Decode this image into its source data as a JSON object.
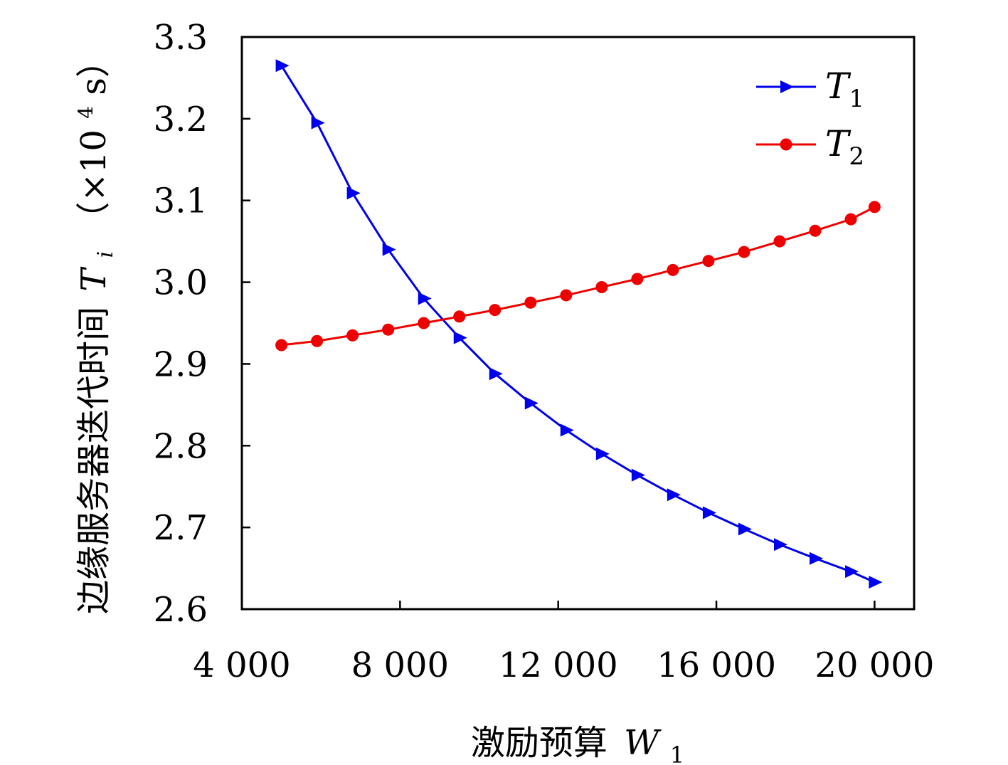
{
  "chart_data": {
    "type": "line",
    "xlabel": "激励预算 W1",
    "ylabel": "边缘服务器迭代时间 Ti（×10⁴ s）",
    "xlim": [
      4000,
      21000
    ],
    "ylim": [
      2.6,
      3.3
    ],
    "xticks": [
      4000,
      8000,
      12000,
      16000,
      20000
    ],
    "xtick_labels": [
      "4 000",
      "8 000",
      "12 000",
      "16 000",
      "20 000"
    ],
    "yticks": [
      2.6,
      2.7,
      2.8,
      2.9,
      3.0,
      3.1,
      3.2,
      3.3
    ],
    "ytick_labels": [
      "2.6",
      "2.7",
      "2.8",
      "2.9",
      "3.0",
      "3.1",
      "3.2",
      "3.3"
    ],
    "legend_position": "top-right",
    "grid": false,
    "x": [
      5000,
      5900,
      6800,
      7700,
      8600,
      9500,
      10400,
      11300,
      12200,
      13100,
      14000,
      14900,
      15800,
      16700,
      17600,
      18500,
      19400,
      20000
    ],
    "series": [
      {
        "name": "T1",
        "color": "#0000ee",
        "marker": "triangle-right",
        "values": [
          3.265,
          3.195,
          3.109,
          3.04,
          2.98,
          2.932,
          2.888,
          2.852,
          2.819,
          2.79,
          2.764,
          2.74,
          2.718,
          2.698,
          2.679,
          2.662,
          2.646,
          2.633
        ]
      },
      {
        "name": "T2",
        "color": "#ee0000",
        "marker": "circle",
        "values": [
          2.923,
          2.928,
          2.935,
          2.942,
          2.95,
          2.958,
          2.966,
          2.975,
          2.984,
          2.994,
          3.004,
          3.015,
          3.026,
          3.037,
          3.05,
          3.063,
          3.077,
          3.092
        ]
      }
    ]
  },
  "labels": {
    "x_axis_prefix": "激励预算",
    "x_axis_var": "W",
    "x_axis_sub": "1",
    "y_axis_prefix": "边缘服务器迭代时间",
    "y_axis_var": "T",
    "y_axis_sub": "i",
    "y_axis_unit_open": "（×10",
    "y_axis_unit_exp": "4",
    "y_axis_unit_close": " s）",
    "legend_1_var": "T",
    "legend_1_sub": "1",
    "legend_2_var": "T",
    "legend_2_sub": "2"
  }
}
